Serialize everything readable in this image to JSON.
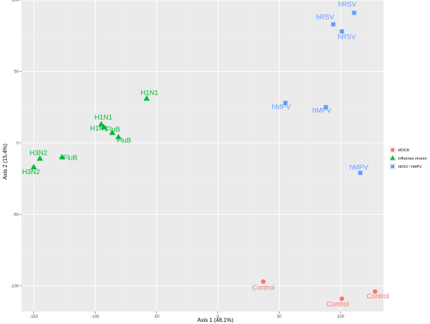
{
  "chart_data": {
    "type": "scatter",
    "xlabel": "Axis 1 (48.1%)",
    "ylabel": "Axis 2 (15.4%)",
    "xlim": [
      -160,
      135
    ],
    "ylim": [
      -118,
      100
    ],
    "x_ticks": [
      -150,
      -100,
      -50,
      0,
      50,
      100
    ],
    "y_ticks": [
      -100,
      -50,
      0,
      50,
      100
    ],
    "x_tick_labels": [
      "-150",
      "-100",
      "-50",
      "0",
      "50",
      "100"
    ],
    "y_tick_labels": [
      "-100",
      "-50",
      "0",
      "50",
      "100"
    ],
    "grid": true,
    "legend_position": "right",
    "series": [
      {
        "name": "MOCK",
        "color": "#f8766d",
        "shape": "circle",
        "points": [
          {
            "x": 37,
            "y": -97,
            "label": "Control"
          },
          {
            "x": 101,
            "y": -109,
            "label": "Control"
          },
          {
            "x": 128,
            "y": -104,
            "label": "Control"
          }
        ]
      },
      {
        "name": "Influenza viruses",
        "color": "#00ba38",
        "shape": "triangle",
        "points": [
          {
            "x": -58,
            "y": 31,
            "label": "H1N1"
          },
          {
            "x": -95,
            "y": 13,
            "label": "H1N1"
          },
          {
            "x": -93,
            "y": 11,
            "label": "H1N1"
          },
          {
            "x": -86,
            "y": 7,
            "label": "FluB"
          },
          {
            "x": -81,
            "y": 4,
            "label": "FluB"
          },
          {
            "x": -127,
            "y": -10,
            "label": "FluB"
          },
          {
            "x": -145,
            "y": -11,
            "label": "H3N2"
          },
          {
            "x": -150,
            "y": -17,
            "label": "H3N2"
          }
        ]
      },
      {
        "name": "hRSV / hMPV",
        "color": "#619cff",
        "shape": "square",
        "points": [
          {
            "x": 111,
            "y": 91,
            "label": "hRSV"
          },
          {
            "x": 94,
            "y": 83,
            "label": "hRSV"
          },
          {
            "x": 101,
            "y": 78,
            "label": "hRSV"
          },
          {
            "x": 55,
            "y": 28,
            "label": "hMPV"
          },
          {
            "x": 88,
            "y": 25,
            "label": "hMPV"
          },
          {
            "x": 116,
            "y": -21,
            "label": "hMPV"
          }
        ]
      }
    ]
  }
}
